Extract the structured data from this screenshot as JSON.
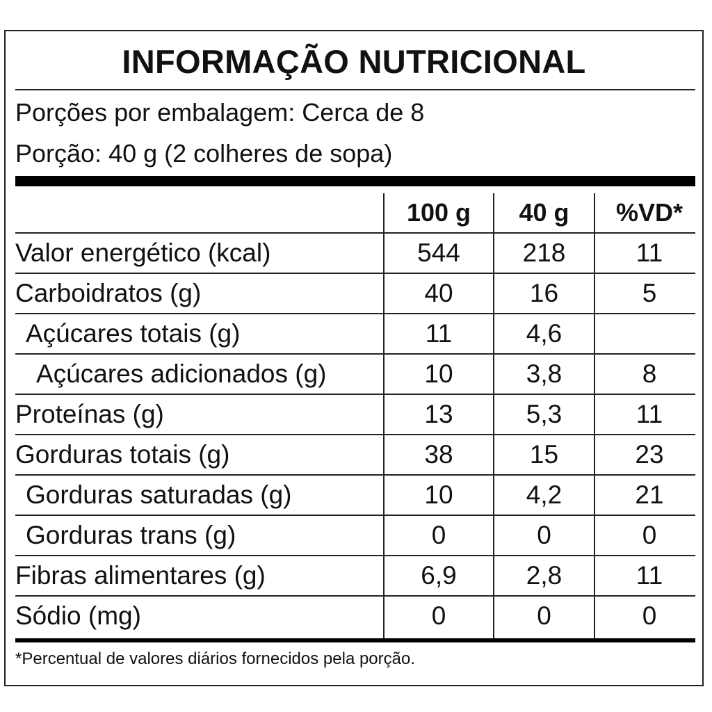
{
  "title": "INFORMAÇÃO NUTRICIONAL",
  "servings_per_package": "Porções por embalagem: Cerca de 8",
  "serving_size": "Porção: 40 g (2 colheres de sopa)",
  "columns": [
    "100 g",
    "40 g",
    "%VD*"
  ],
  "rows": [
    {
      "name": "Valor energético (kcal)",
      "per100": "544",
      "perPortion": "218",
      "dv": "11"
    },
    {
      "name": "Carboidratos (g)",
      "per100": "40",
      "perPortion": "16",
      "dv": "5"
    },
    {
      "name": "Açúcares totais (g)",
      "per100": "11",
      "perPortion": "4,6",
      "dv": ""
    },
    {
      "name": "Açúcares adicionados (g)",
      "per100": "10",
      "perPortion": "3,8",
      "dv": "8"
    },
    {
      "name": "Proteínas (g)",
      "per100": "13",
      "perPortion": "5,3",
      "dv": "11"
    },
    {
      "name": "Gorduras totais (g)",
      "per100": "38",
      "perPortion": "15",
      "dv": "23"
    },
    {
      "name": "Gorduras saturadas (g)",
      "per100": "10",
      "perPortion": "4,2",
      "dv": "21"
    },
    {
      "name": "Gorduras trans (g)",
      "per100": "0",
      "perPortion": "0",
      "dv": "0"
    },
    {
      "name": "Fibras alimentares (g)",
      "per100": "6,9",
      "perPortion": "2,8",
      "dv": "11"
    },
    {
      "name": "Sódio (mg)",
      "per100": "0",
      "perPortion": "0",
      "dv": "0"
    }
  ],
  "footnote": "*Percentual de valores diários fornecidos pela porção."
}
